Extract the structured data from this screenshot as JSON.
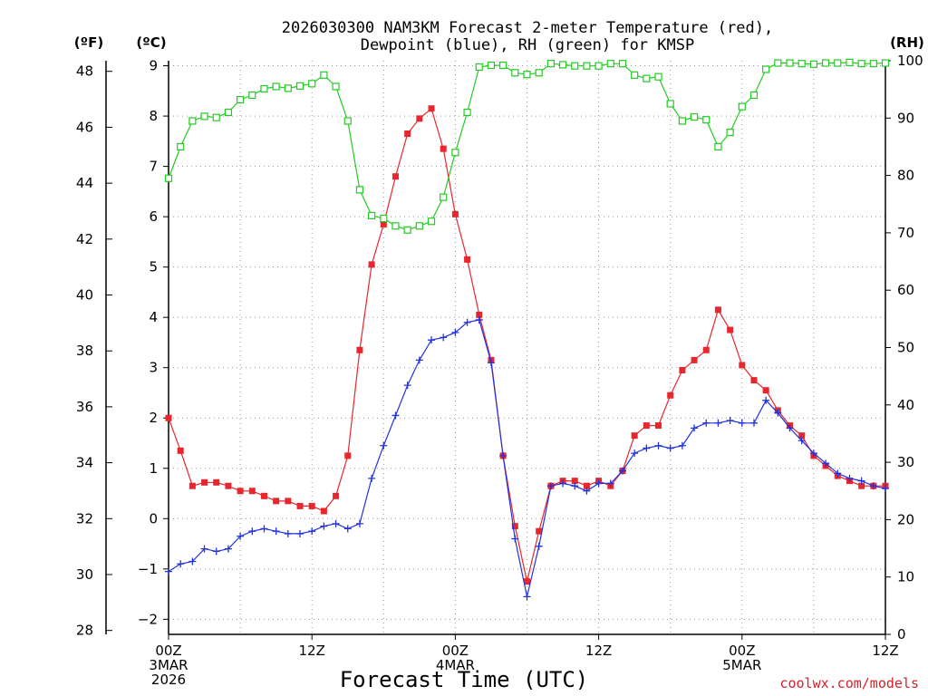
{
  "chart_data": {
    "type": "line",
    "title_line1": "2026030300 NAM3KM Forecast 2-meter Temperature (red),",
    "title_line2": "Dewpoint (blue), RH (green) for KMSP",
    "xlabel": "Forecast Time (UTC)",
    "credit": "coolwx.com/models",
    "units": {
      "fahrenheit": "(ºF)",
      "celsius": "(ºC)",
      "rh": "(RH)"
    },
    "x_range_hours": [
      0,
      60
    ],
    "celsius_axis": {
      "range": [
        -2.3,
        9.1
      ],
      "ticks": [
        -2,
        -1,
        0,
        1,
        2,
        3,
        4,
        5,
        6,
        7,
        8,
        9
      ],
      "tick_labels": [
        "−2",
        "−1",
        "0",
        "1",
        "2",
        "3",
        "4",
        "5",
        "6",
        "7",
        "8",
        "9"
      ]
    },
    "fahrenheit_axis": {
      "ticks": [
        28,
        30,
        32,
        34,
        36,
        38,
        40,
        42,
        44,
        46,
        48
      ],
      "tick_labels": [
        "28",
        "30",
        "32",
        "34",
        "36",
        "38",
        "40",
        "42",
        "44",
        "46",
        "48"
      ]
    },
    "rh_axis": {
      "range": [
        0,
        100
      ],
      "ticks": [
        0,
        10,
        20,
        30,
        40,
        50,
        60,
        70,
        80,
        90,
        100
      ],
      "tick_labels": [
        "0",
        "10",
        "20",
        "30",
        "40",
        "50",
        "60",
        "70",
        "80",
        "90",
        "100"
      ]
    },
    "x_ticks": [
      {
        "hour": 0,
        "lines": [
          "00Z",
          "3MAR",
          "2026"
        ]
      },
      {
        "hour": 12,
        "lines": [
          "12Z"
        ]
      },
      {
        "hour": 24,
        "lines": [
          "00Z",
          "4MAR"
        ]
      },
      {
        "hour": 36,
        "lines": [
          "12Z"
        ]
      },
      {
        "hour": 48,
        "lines": [
          "00Z",
          "5MAR"
        ]
      },
      {
        "hour": 60,
        "lines": [
          "12Z"
        ]
      }
    ],
    "x_grid_hours": [
      6,
      18,
      30,
      42,
      54
    ],
    "series": [
      {
        "name": "2-meter Temperature",
        "axis": "celsius",
        "color": "#e8262d",
        "marker": "filled-square",
        "hours": [
          0,
          1,
          2,
          3,
          4,
          5,
          6,
          7,
          8,
          9,
          10,
          11,
          12,
          13,
          14,
          15,
          16,
          17,
          18,
          19,
          20,
          21,
          22,
          23,
          24,
          25,
          26,
          27,
          28,
          29,
          30,
          31,
          32,
          33,
          34,
          35,
          36,
          37,
          38,
          39,
          40,
          41,
          42,
          43,
          44,
          45,
          46,
          47,
          48,
          49,
          50,
          51,
          52,
          53,
          54,
          55,
          56,
          57,
          58,
          59,
          60
        ],
        "values": [
          2.0,
          1.35,
          0.65,
          0.72,
          0.72,
          0.65,
          0.55,
          0.55,
          0.45,
          0.35,
          0.35,
          0.25,
          0.25,
          0.15,
          0.45,
          1.25,
          3.35,
          5.05,
          5.85,
          6.8,
          7.65,
          7.95,
          8.15,
          7.35,
          6.05,
          5.15,
          4.05,
          3.15,
          1.25,
          -0.15,
          -1.25,
          -0.25,
          0.65,
          0.75,
          0.75,
          0.65,
          0.75,
          0.65,
          0.95,
          1.65,
          1.85,
          1.85,
          2.45,
          2.95,
          3.15,
          3.35,
          4.15,
          3.75,
          3.05,
          2.75,
          2.55,
          2.15,
          1.85,
          1.65,
          1.25,
          1.05,
          0.85,
          0.75,
          0.65,
          0.65,
          0.65
        ]
      },
      {
        "name": "Dewpoint",
        "axis": "celsius",
        "color": "#2233dd",
        "marker": "plus",
        "hours": [
          0,
          1,
          2,
          3,
          4,
          5,
          6,
          7,
          8,
          9,
          10,
          11,
          12,
          13,
          14,
          15,
          16,
          17,
          18,
          19,
          20,
          21,
          22,
          23,
          24,
          25,
          26,
          27,
          28,
          29,
          30,
          31,
          32,
          33,
          34,
          35,
          36,
          37,
          38,
          39,
          40,
          41,
          42,
          43,
          44,
          45,
          46,
          47,
          48,
          49,
          50,
          51,
          52,
          53,
          54,
          55,
          56,
          57,
          58,
          59,
          60
        ],
        "values": [
          -1.05,
          -0.9,
          -0.85,
          -0.6,
          -0.65,
          -0.6,
          -0.35,
          -0.25,
          -0.2,
          -0.25,
          -0.3,
          -0.3,
          -0.25,
          -0.15,
          -0.1,
          -0.2,
          -0.1,
          0.8,
          1.45,
          2.05,
          2.65,
          3.15,
          3.55,
          3.6,
          3.7,
          3.9,
          3.95,
          3.1,
          1.25,
          -0.4,
          -1.55,
          -0.55,
          0.65,
          0.7,
          0.65,
          0.55,
          0.7,
          0.7,
          0.95,
          1.3,
          1.4,
          1.45,
          1.4,
          1.45,
          1.8,
          1.9,
          1.9,
          1.95,
          1.9,
          1.9,
          2.35,
          2.1,
          1.8,
          1.55,
          1.3,
          1.1,
          0.9,
          0.8,
          0.75,
          0.65,
          0.6
        ]
      },
      {
        "name": "RH",
        "axis": "rh",
        "color": "#22cc22",
        "marker": "open-square",
        "hours": [
          0,
          1,
          2,
          3,
          4,
          5,
          6,
          7,
          8,
          9,
          10,
          11,
          12,
          13,
          14,
          15,
          16,
          17,
          18,
          19,
          20,
          21,
          22,
          23,
          24,
          25,
          26,
          27,
          28,
          29,
          30,
          31,
          32,
          33,
          34,
          35,
          36,
          37,
          38,
          39,
          40,
          41,
          42,
          43,
          44,
          45,
          46,
          47,
          48,
          49,
          50,
          51,
          52,
          53,
          54,
          55,
          56,
          57,
          58,
          59,
          60
        ],
        "values": [
          79.5,
          85,
          89.5,
          90.3,
          90.1,
          91,
          93.2,
          94,
          95.1,
          95.5,
          95.2,
          95.6,
          96,
          97.5,
          95.5,
          89.5,
          77.5,
          73,
          72.5,
          71.2,
          70.5,
          71.2,
          72,
          76.2,
          84,
          91,
          98.9,
          99.2,
          99.2,
          97.9,
          97.6,
          97.9,
          99.5,
          99.3,
          99.1,
          99.1,
          99.1,
          99.5,
          99.5,
          97.5,
          96.9,
          97.2,
          92.5,
          89.5,
          90.2,
          89.7,
          85,
          87.5,
          92,
          94,
          98.5,
          99.6,
          99.6,
          99.5,
          99.4,
          99.6,
          99.6,
          99.7,
          99.5,
          99.5,
          99.6
        ]
      }
    ]
  }
}
